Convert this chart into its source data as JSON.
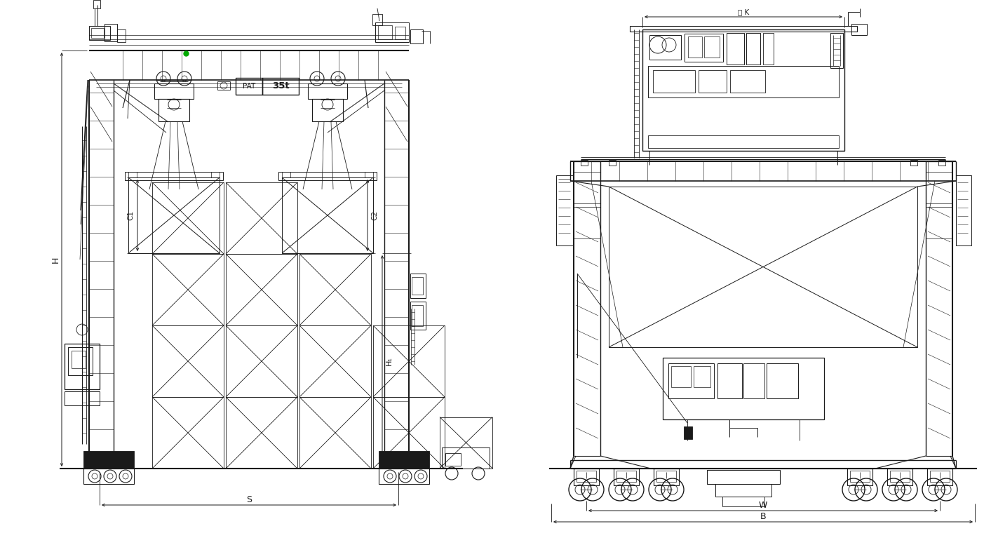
{
  "bg_color": "#ffffff",
  "line_color": "#1a1a1a",
  "dim_color": "#1a1a1a",
  "green_color": "#00aa00",
  "figsize": [
    14.03,
    7.87
  ],
  "dpi": 100,
  "label_PAT": "PAT",
  "label_35t": "35t",
  "label_C1": "C1",
  "label_C2": "C2",
  "label_H": "H",
  "label_H1": "H₁",
  "label_S": "S",
  "label_W": "W",
  "label_B": "B",
  "label_K": "跡 K"
}
